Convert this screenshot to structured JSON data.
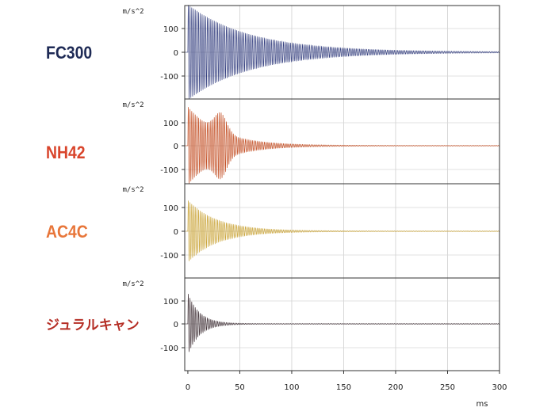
{
  "chart_data": {
    "type": "line",
    "xlabel": "ms",
    "x_ticks": [
      0,
      50,
      100,
      150,
      200,
      250,
      300
    ],
    "xlim": [
      -3,
      300
    ],
    "grid": true,
    "panels": [
      {
        "material": "FC300",
        "unit": "m/s^2",
        "y_ticks": [
          "100",
          "0",
          "-100"
        ],
        "ylim": [
          -200,
          200
        ],
        "color": "#2f3a7c",
        "label_color": "#1e2a55",
        "peak": 200,
        "decay_ms": 60,
        "freq_cycles_per_ms": 0.6
      },
      {
        "material": "NH42",
        "unit": "m/s^2",
        "y_ticks": [
          "100",
          "0",
          "-100"
        ],
        "ylim": [
          -200,
          200
        ],
        "color": "#c24a1e",
        "label_color": "#d9452c",
        "peak": 170,
        "decay_ms": 30,
        "freq_cycles_per_ms": 0.6,
        "second_burst": {
          "center_ms": 32,
          "amplitude": 85
        }
      },
      {
        "material": "AC4C",
        "unit": "m/s^2",
        "y_ticks": [
          "100",
          "0",
          "-100"
        ],
        "ylim": [
          -200,
          200
        ],
        "color": "#c9a233",
        "label_color": "#e8763a",
        "peak": 130,
        "decay_ms": 28,
        "freq_cycles_per_ms": 0.6
      },
      {
        "material": "ジュラルキャン",
        "unit": "m/s^2",
        "y_ticks": [
          "100",
          "0",
          "-100"
        ],
        "ylim": [
          -200,
          200
        ],
        "color": "#3a2a30",
        "label_color": "#b52e25",
        "peak": 135,
        "decay_ms": 11,
        "freq_cycles_per_ms": 0.6
      }
    ]
  }
}
